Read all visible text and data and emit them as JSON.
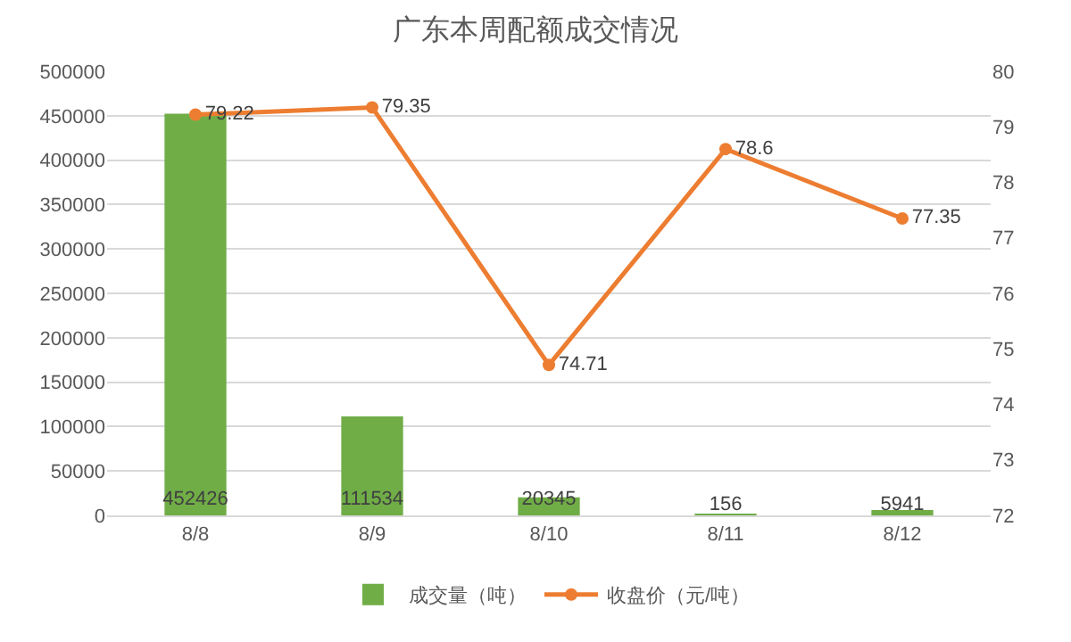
{
  "chart_data": {
    "type": "bar",
    "title": "广东本周配额成交情况",
    "categories": [
      "8/8",
      "8/9",
      "8/10",
      "8/11",
      "8/12"
    ],
    "series": [
      {
        "name": "成交量（吨）",
        "color": "#70ad47",
        "values": [
          452426,
          111534,
          20345,
          156,
          5941
        ]
      },
      {
        "name": "收盘价（元/吨）",
        "type": "line",
        "axis": "y2",
        "color": "#ed7d31",
        "values": [
          79.22,
          79.35,
          74.71,
          78.6,
          77.35
        ]
      }
    ],
    "ylim": [
      0,
      500000
    ],
    "yticks": [
      0,
      50000,
      100000,
      150000,
      200000,
      250000,
      300000,
      350000,
      400000,
      450000,
      500000
    ],
    "y2lim": [
      72,
      80
    ],
    "y2ticks": [
      72,
      73,
      74,
      75,
      76,
      77,
      78,
      79,
      80
    ],
    "grid": "y",
    "legend": "bottom",
    "marker": "circle",
    "data_labels": true
  }
}
